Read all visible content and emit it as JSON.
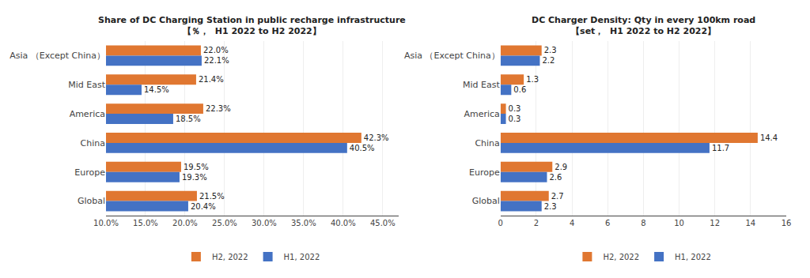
{
  "chart_data": [
    {
      "type": "bar",
      "orientation": "horizontal",
      "title": "Share of DC Charging Station in public recharge infrastructure\n【％，  H1 2022 to H2 2022】",
      "categories": [
        "Asia （Except China）",
        "Mid East",
        "America",
        "China",
        "Europe",
        "Global"
      ],
      "series": [
        {
          "name": "H2, 2022",
          "color": "#E07731",
          "values": [
            22.0,
            21.4,
            22.3,
            42.3,
            19.5,
            21.5
          ],
          "value_labels": [
            "22.0%",
            "21.4%",
            "22.3%",
            "42.3%",
            "19.5%",
            "21.5%"
          ]
        },
        {
          "name": "H1, 2022",
          "color": "#4472C4",
          "values": [
            22.1,
            14.5,
            18.5,
            40.5,
            19.3,
            20.4
          ],
          "value_labels": [
            "22.1%",
            "14.5%",
            "18.5%",
            "40.5%",
            "19.3%",
            "20.4%"
          ]
        }
      ],
      "xlim": [
        10.0,
        47.0
      ],
      "xticks": [
        {
          "value": 10.0,
          "label": "10.0%"
        },
        {
          "value": 15.0,
          "label": "15.0%"
        },
        {
          "value": 20.0,
          "label": "20.0%"
        },
        {
          "value": 25.0,
          "label": "25.0%"
        },
        {
          "value": 30.0,
          "label": "30.0%"
        },
        {
          "value": 35.0,
          "label": "35.0%"
        },
        {
          "value": 40.0,
          "label": "40.0%"
        },
        {
          "value": 45.0,
          "label": "45.0%"
        }
      ],
      "grid": true,
      "legend": "bottom",
      "data_labels": true
    },
    {
      "type": "bar",
      "orientation": "horizontal",
      "title": "DC Charger Density: Qty in every 100km road\n【set，  H1 2022 to H2 2022】",
      "categories": [
        "Asia （Except China）",
        "Mid East",
        "America",
        "China",
        "Europe",
        "Global"
      ],
      "series": [
        {
          "name": "H2, 2022",
          "color": "#E07731",
          "values": [
            2.3,
            1.3,
            0.3,
            14.4,
            2.9,
            2.7
          ]
        },
        {
          "name": "H1, 2022",
          "color": "#4472C4",
          "values": [
            2.2,
            0.6,
            0.3,
            11.7,
            2.6,
            2.3
          ]
        }
      ],
      "xlim": [
        0,
        16
      ],
      "xticks": [
        0,
        2,
        4,
        6,
        8,
        10,
        12,
        14,
        16
      ],
      "grid": true,
      "legend": "bottom",
      "data_labels": true
    }
  ]
}
